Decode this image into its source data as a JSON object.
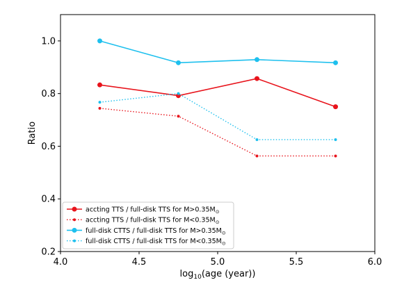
{
  "chart_data": {
    "type": "line",
    "title": "",
    "xlabel_main": "log",
    "xlabel_sub": "10",
    "xlabel_rest": "(age (year))",
    "ylabel": "Ratio",
    "xlim": [
      4.0,
      6.0
    ],
    "ylim": [
      0.2,
      1.1
    ],
    "xticks": [
      "4.0",
      "4.5",
      "5.0",
      "5.5",
      "6.0"
    ],
    "yticks": [
      "0.2",
      "0.4",
      "0.6",
      "0.8",
      "1.0"
    ],
    "grid": false,
    "legend_position": "lower-left",
    "x": [
      4.25,
      4.75,
      5.25,
      5.75
    ],
    "series": [
      {
        "name_main": "accting TTS / full-disk TTS for M>0.35M",
        "name_sub": "⊙",
        "values": [
          0.833,
          0.792,
          0.857,
          0.75
        ],
        "color": "#e8141c",
        "style": "solid",
        "marker": "large"
      },
      {
        "name_main": "accting TTS / full-disk TTS for M<0.35M",
        "name_sub": "⊙",
        "values": [
          0.744,
          0.714,
          0.563,
          0.563
        ],
        "color": "#e8141c",
        "style": "dotted",
        "marker": "small"
      },
      {
        "name_main": "full-disk CTTS / full-disk TTS for M>0.35M",
        "name_sub": "⊙",
        "values": [
          1.0,
          0.917,
          0.929,
          0.917
        ],
        "color": "#1ec0ee",
        "style": "solid",
        "marker": "large"
      },
      {
        "name_main": "full-disk CTTS / full-disk TTS for M<0.35M",
        "name_sub": "⊙",
        "values": [
          0.767,
          0.8,
          0.625,
          0.625
        ],
        "color": "#1ec0ee",
        "style": "dotted",
        "marker": "small"
      }
    ]
  }
}
